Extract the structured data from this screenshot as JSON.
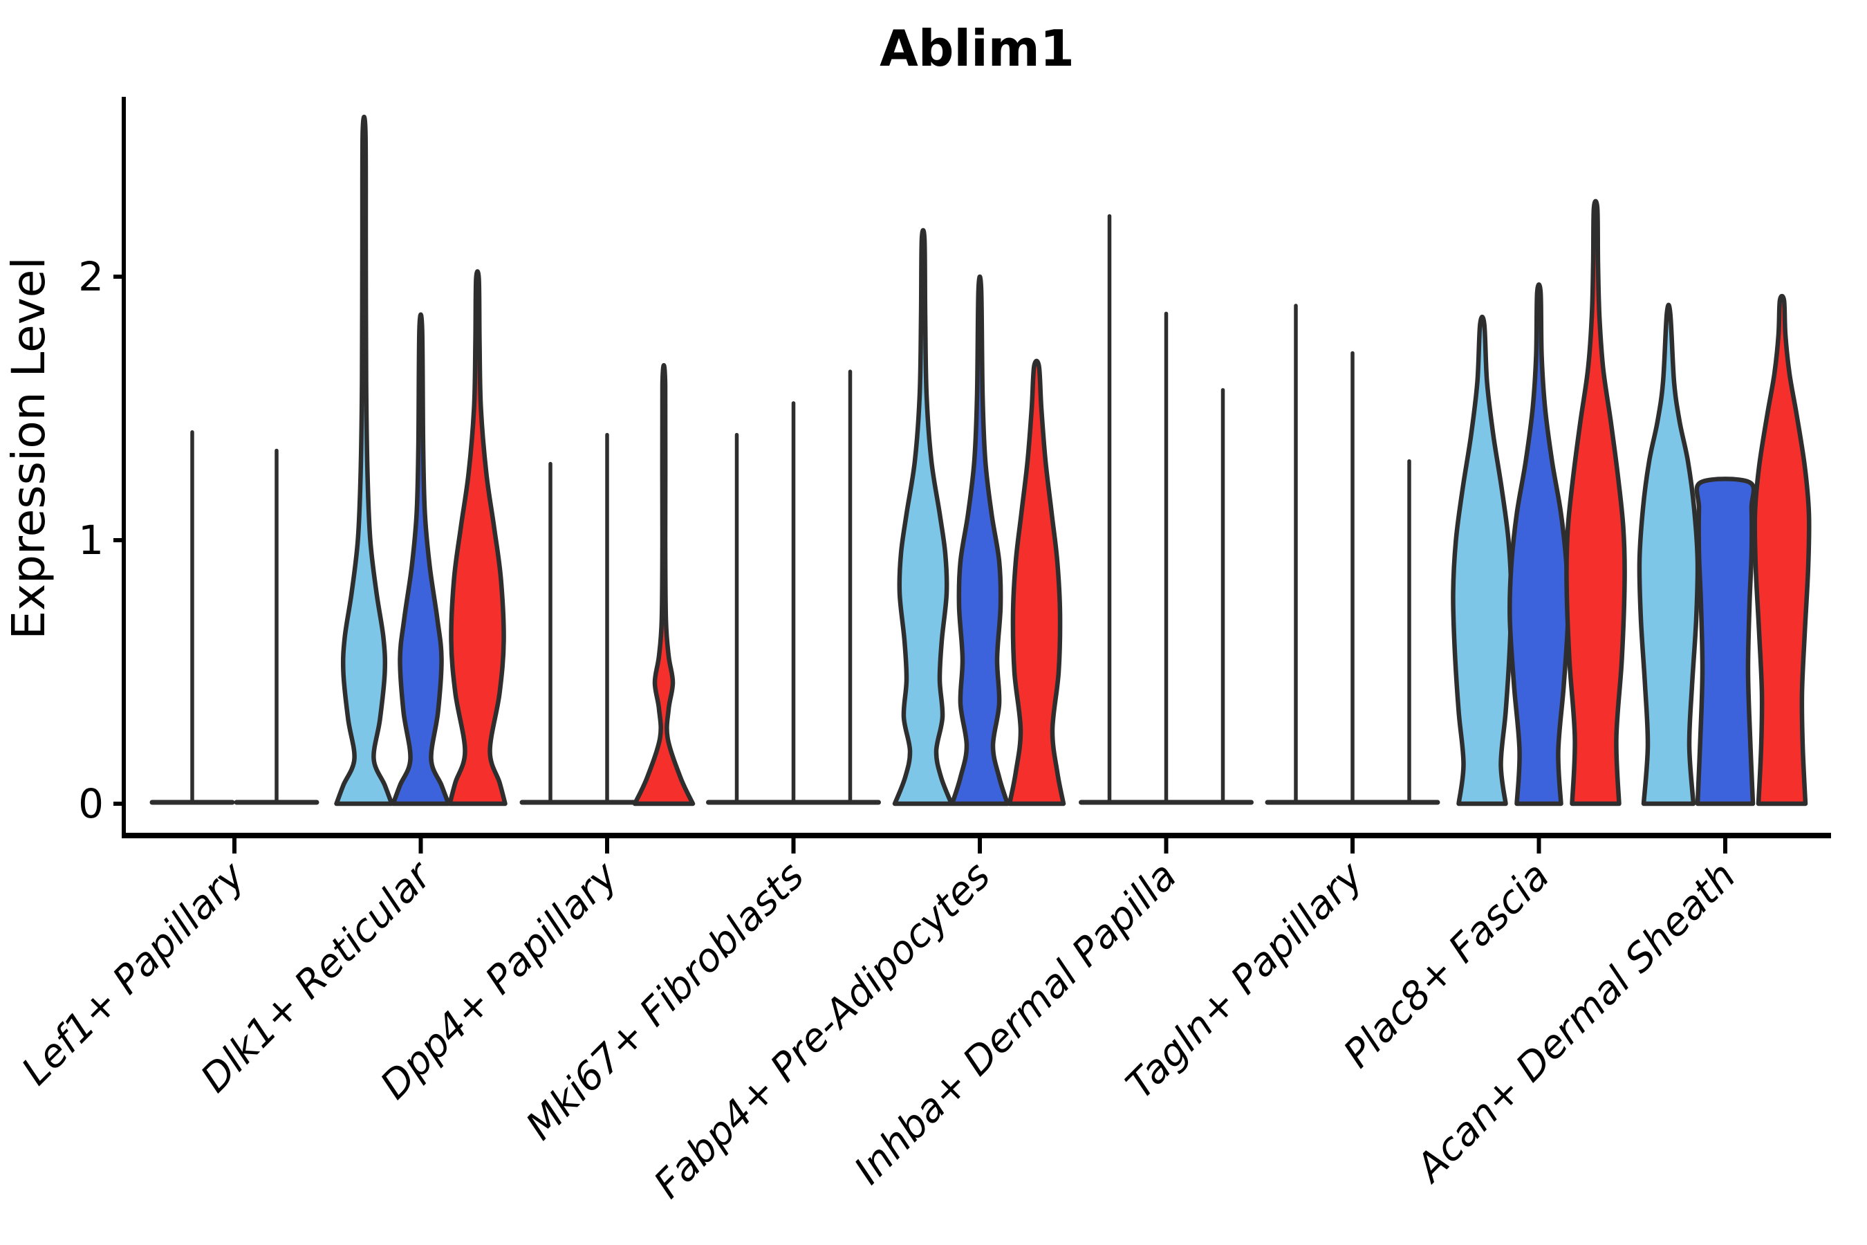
{
  "title": "Ablim1",
  "axes": {
    "y_label": "Expression Level",
    "y_tick_labels": [
      "0",
      "1",
      "2"
    ]
  },
  "chart_data": {
    "type": "violin",
    "title": "Ablim1",
    "xlabel": "",
    "ylabel": "Expression Level",
    "ylim": [
      0,
      2.68
    ],
    "yticks": [
      0,
      1,
      2
    ],
    "grid": false,
    "legend": "none",
    "colors": {
      "lightblue": "#7EC6E8",
      "blue": "#3D63DC",
      "red": "#F5302C",
      "outline": "#2E2E2E",
      "axis": "#000000"
    },
    "categories": [
      "Lef1+ Papillary",
      "Dlk1+ Reticular",
      "Dpp4+ Papillary",
      "Mki67+ Fibroblasts",
      "Fabp4+ Pre-Adipocytes",
      "Inhba+ Dermal Papilla",
      "Tagln+ Papillary",
      "Plac8+ Fascia",
      "Acan+ Dermal Sheath"
    ],
    "groups": [
      {
        "category": "Lef1+ Papillary",
        "violins": [
          {
            "color": "lightblue",
            "kind": "spike",
            "max": 1.41,
            "hw": 58
          },
          {
            "color": "blue",
            "kind": "spike",
            "max": 1.34,
            "hw": 58
          }
        ]
      },
      {
        "category": "Dlk1+ Reticular",
        "violins": [
          {
            "color": "lightblue",
            "kind": "density",
            "max": 2.55,
            "profile": [
              [
                0,
                40
              ],
              [
                0.07,
                30
              ],
              [
                0.17,
                14
              ],
              [
                0.32,
                23
              ],
              [
                0.5,
                30
              ],
              [
                0.63,
                28
              ],
              [
                0.8,
                18
              ],
              [
                1.0,
                9
              ],
              [
                1.25,
                5
              ],
              [
                1.6,
                3
              ],
              [
                2.1,
                2.5
              ],
              [
                2.55,
                2
              ]
            ]
          },
          {
            "color": "blue",
            "kind": "density",
            "max": 1.8,
            "profile": [
              [
                0,
                40
              ],
              [
                0.07,
                30
              ],
              [
                0.17,
                15
              ],
              [
                0.35,
                25
              ],
              [
                0.55,
                30
              ],
              [
                0.7,
                24
              ],
              [
                0.9,
                13
              ],
              [
                1.1,
                6
              ],
              [
                1.35,
                3.5
              ],
              [
                1.8,
                2
              ]
            ]
          },
          {
            "color": "red",
            "kind": "density",
            "max": 1.99,
            "profile": [
              [
                0,
                40
              ],
              [
                0.08,
                32
              ],
              [
                0.2,
                18
              ],
              [
                0.42,
                32
              ],
              [
                0.62,
                38
              ],
              [
                0.85,
                34
              ],
              [
                1.05,
                24
              ],
              [
                1.25,
                13
              ],
              [
                1.5,
                5
              ],
              [
                1.75,
                3
              ],
              [
                1.99,
                2
              ]
            ]
          }
        ]
      },
      {
        "category": "Dpp4+ Papillary",
        "violins": [
          {
            "color": "lightblue",
            "kind": "spike",
            "max": 1.29,
            "hw": 41
          },
          {
            "color": "blue",
            "kind": "spike",
            "max": 1.4,
            "hw": 41
          },
          {
            "color": "red",
            "kind": "density",
            "max": 1.59,
            "profile": [
              [
                0,
                42
              ],
              [
                0.1,
                24
              ],
              [
                0.25,
                5.5
              ],
              [
                0.36,
                7
              ],
              [
                0.46,
                13
              ],
              [
                0.56,
                7
              ],
              [
                0.7,
                3
              ],
              [
                1.0,
                2
              ],
              [
                1.59,
                2
              ]
            ]
          }
        ]
      },
      {
        "category": "Mki67+ Fibroblasts",
        "violins": [
          {
            "color": "lightblue",
            "kind": "spike",
            "max": 1.4,
            "hw": 41
          },
          {
            "color": "blue",
            "kind": "spike",
            "max": 1.52,
            "hw": 41
          },
          {
            "color": "red",
            "kind": "spike",
            "max": 1.64,
            "hw": 41
          }
        ]
      },
      {
        "category": "Fabp4+ Pre-Adipocytes",
        "violins": [
          {
            "color": "lightblue",
            "kind": "density",
            "max": 2.14,
            "profile": [
              [
                0,
                41
              ],
              [
                0.1,
                26
              ],
              [
                0.2,
                19
              ],
              [
                0.33,
                28
              ],
              [
                0.47,
                24
              ],
              [
                0.62,
                27
              ],
              [
                0.8,
                34
              ],
              [
                0.95,
                32
              ],
              [
                1.1,
                24
              ],
              [
                1.3,
                12
              ],
              [
                1.55,
                5
              ],
              [
                1.85,
                3
              ],
              [
                2.14,
                2
              ]
            ]
          },
          {
            "color": "blue",
            "kind": "density",
            "max": 1.95,
            "profile": [
              [
                0,
                40
              ],
              [
                0.1,
                28
              ],
              [
                0.22,
                19
              ],
              [
                0.38,
                28
              ],
              [
                0.55,
                25
              ],
              [
                0.75,
                30
              ],
              [
                0.92,
                28
              ],
              [
                1.1,
                17
              ],
              [
                1.3,
                8
              ],
              [
                1.55,
                4
              ],
              [
                1.95,
                2
              ]
            ]
          },
          {
            "color": "red",
            "kind": "density",
            "max": 1.66,
            "profile": [
              [
                0,
                39
              ],
              [
                0.12,
                30
              ],
              [
                0.28,
                23
              ],
              [
                0.5,
                32
              ],
              [
                0.72,
                34
              ],
              [
                0.92,
                30
              ],
              [
                1.1,
                22
              ],
              [
                1.3,
                13
              ],
              [
                1.5,
                7
              ],
              [
                1.66,
                3.5
              ]
            ]
          }
        ]
      },
      {
        "category": "Inhba+ Dermal Papilla",
        "violins": [
          {
            "color": "lightblue",
            "kind": "spike",
            "max": 2.23,
            "hw": 41
          },
          {
            "color": "blue",
            "kind": "spike",
            "max": 1.86,
            "hw": 41
          },
          {
            "color": "red",
            "kind": "spike",
            "max": 1.57,
            "hw": 41
          }
        ]
      },
      {
        "category": "Tagln+ Papillary",
        "violins": [
          {
            "color": "lightblue",
            "kind": "spike",
            "max": 1.89,
            "hw": 41
          },
          {
            "color": "blue",
            "kind": "spike",
            "max": 1.71,
            "hw": 41
          },
          {
            "color": "red",
            "kind": "spike",
            "max": 1.3,
            "hw": 41
          }
        ]
      },
      {
        "category": "Plac8+ Fascia",
        "violins": [
          {
            "color": "lightblue",
            "kind": "density",
            "max": 1.82,
            "profile": [
              [
                0,
                34
              ],
              [
                0.15,
                27
              ],
              [
                0.35,
                34
              ],
              [
                0.6,
                40
              ],
              [
                0.8,
                42
              ],
              [
                1.0,
                38
              ],
              [
                1.2,
                28
              ],
              [
                1.4,
                16
              ],
              [
                1.6,
                7
              ],
              [
                1.82,
                3
              ]
            ]
          },
          {
            "color": "blue",
            "kind": "density",
            "max": 1.94,
            "profile": [
              [
                0,
                32
              ],
              [
                0.2,
                28
              ],
              [
                0.45,
                36
              ],
              [
                0.7,
                42
              ],
              [
                0.9,
                40
              ],
              [
                1.1,
                32
              ],
              [
                1.3,
                19
              ],
              [
                1.5,
                9
              ],
              [
                1.7,
                4
              ],
              [
                1.94,
                2.5
              ]
            ]
          },
          {
            "color": "red",
            "kind": "density",
            "max": 2.26,
            "profile": [
              [
                0,
                34
              ],
              [
                0.25,
                30
              ],
              [
                0.55,
                38
              ],
              [
                0.85,
                42
              ],
              [
                1.05,
                40
              ],
              [
                1.25,
                32
              ],
              [
                1.45,
                22
              ],
              [
                1.65,
                11
              ],
              [
                1.85,
                5.5
              ],
              [
                2.05,
                3.5
              ],
              [
                2.26,
                2.5
              ]
            ]
          }
        ]
      },
      {
        "category": "Acan+ Dermal Sheath",
        "violins": [
          {
            "color": "lightblue",
            "kind": "density",
            "max": 1.86,
            "profile": [
              [
                0,
                36
              ],
              [
                0.22,
                30
              ],
              [
                0.45,
                34
              ],
              [
                0.7,
                40
              ],
              [
                0.92,
                42
              ],
              [
                1.12,
                37
              ],
              [
                1.3,
                28
              ],
              [
                1.45,
                16
              ],
              [
                1.6,
                8
              ],
              [
                1.86,
                2.5
              ]
            ]
          },
          {
            "color": "blue",
            "kind": "density",
            "max": 1.22,
            "flat_top": true,
            "profile": [
              [
                0,
                40
              ],
              [
                0.25,
                36
              ],
              [
                0.5,
                33
              ],
              [
                0.75,
                35
              ],
              [
                0.95,
                38
              ],
              [
                1.12,
                38
              ],
              [
                1.22,
                35
              ]
            ]
          },
          {
            "color": "red",
            "kind": "density",
            "max": 1.91,
            "profile": [
              [
                0,
                34
              ],
              [
                0.22,
                30
              ],
              [
                0.42,
                29
              ],
              [
                0.65,
                33
              ],
              [
                0.9,
                38
              ],
              [
                1.1,
                39
              ],
              [
                1.28,
                33
              ],
              [
                1.48,
                21
              ],
              [
                1.63,
                11
              ],
              [
                1.78,
                5
              ],
              [
                1.91,
                3
              ]
            ]
          }
        ]
      }
    ]
  }
}
